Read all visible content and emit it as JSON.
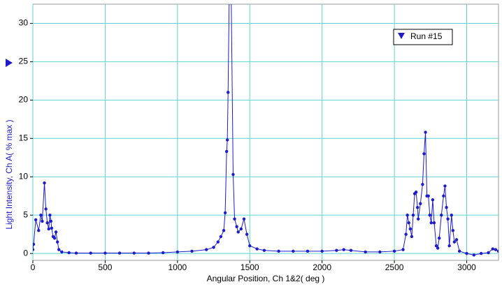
{
  "chart_data": {
    "type": "line",
    "x_label": "Angular Position, Ch 1&2( deg )",
    "y_label": "Light Intensity, Ch A( % max )",
    "xlim": [
      0,
      3220
    ],
    "ylim": [
      -0.9,
      32.5
    ],
    "xticks": [
      0,
      500,
      1000,
      1500,
      2000,
      2500,
      3000
    ],
    "yticks": [
      0,
      5,
      10,
      15,
      20,
      25,
      30
    ],
    "grid": true,
    "legend": "upper right",
    "series": [
      {
        "name": "Run #15",
        "color": "#1c1ccc",
        "x": [
          0,
          5,
          20,
          40,
          55,
          65,
          80,
          90,
          100,
          110,
          118,
          125,
          130,
          140,
          150,
          160,
          170,
          180,
          200,
          250,
          300,
          400,
          500,
          600,
          700,
          800,
          900,
          1000,
          1100,
          1200,
          1250,
          1280,
          1300,
          1320,
          1330,
          1340,
          1345,
          1350,
          1365,
          1385,
          1395,
          1410,
          1420,
          1440,
          1460,
          1480,
          1500,
          1550,
          1600,
          1700,
          1800,
          1900,
          2000,
          2100,
          2150,
          2200,
          2300,
          2400,
          2500,
          2560,
          2580,
          2590,
          2600,
          2610,
          2620,
          2630,
          2640,
          2650,
          2660,
          2665,
          2680,
          2695,
          2705,
          2715,
          2725,
          2735,
          2745,
          2755,
          2765,
          2775,
          2790,
          2800,
          2810,
          2825,
          2840,
          2850,
          2860,
          2870,
          2880,
          2895,
          2905,
          2915,
          2930,
          2950,
          3000,
          3050,
          3100,
          3150,
          3180,
          3200,
          3220
        ],
        "values": [
          0.5,
          1.2,
          4.4,
          3,
          5,
          4.2,
          9.2,
          5.8,
          4,
          3.2,
          5,
          4.2,
          3.3,
          2.2,
          2,
          2.8,
          1.5,
          0.5,
          0.2,
          0.1,
          0.05,
          0.05,
          0.05,
          0.05,
          0.05,
          0.05,
          0.1,
          0.2,
          0.3,
          0.5,
          0.8,
          1.5,
          2.2,
          3,
          5.3,
          13.3,
          14.8,
          21,
          45,
          10.3,
          4.5,
          3.5,
          2.8,
          3.2,
          4.5,
          2.5,
          1,
          0.6,
          0.4,
          0.3,
          0.3,
          0.3,
          0.3,
          0.4,
          0.5,
          0.4,
          0.2,
          0.2,
          0.3,
          0.5,
          2.5,
          5,
          4,
          3.2,
          2.2,
          5,
          7.8,
          8,
          6,
          4.5,
          6.5,
          9,
          13,
          15.8,
          7.5,
          7.5,
          5,
          4,
          7,
          4,
          1,
          0.7,
          2,
          5,
          7.5,
          8.8,
          6,
          4.5,
          1,
          5,
          3,
          1.5,
          1.8,
          0.3,
          0,
          -0.2,
          0,
          0.1,
          0.6,
          0.5,
          0.3
        ]
      }
    ]
  }
}
